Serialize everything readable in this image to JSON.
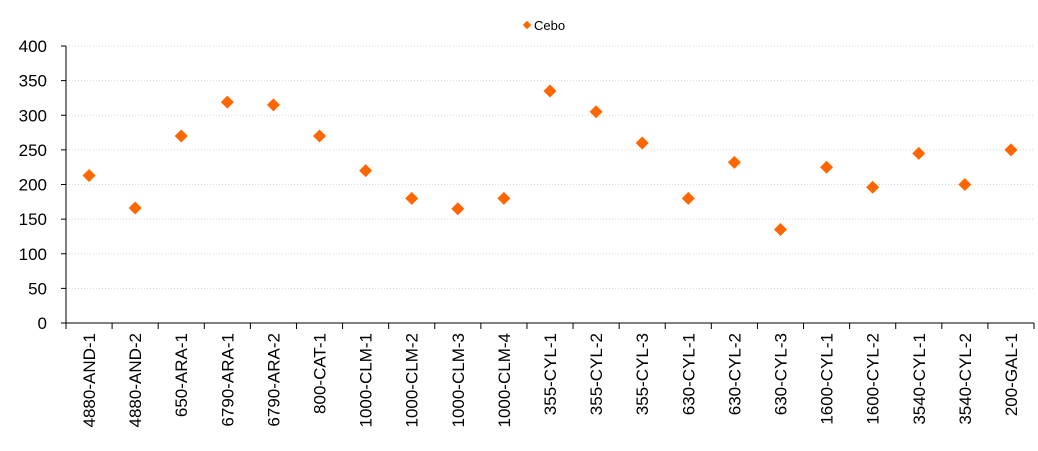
{
  "chart_data": {
    "type": "scatter",
    "categories": [
      "4880-AND-1",
      "4880-AND-2",
      "650-ARA-1",
      "6790-ARA-1",
      "6790-ARA-2",
      "800-CAT-1",
      "1000-CLM-1",
      "1000-CLM-2",
      "1000-CLM-3",
      "1000-CLM-4",
      "355-CYL-1",
      "355-CYL-2",
      "355-CYL-3",
      "630-CYL-1",
      "630-CYL-2",
      "630-CYL-3",
      "1600-CYL-1",
      "1600-CYL-2",
      "3540-CYL-1",
      "3540-CYL-2",
      "200-GAL-1"
    ],
    "series": [
      {
        "name": "Cebo",
        "color": "#ff6600",
        "marker": "diamond",
        "values": [
          213,
          166,
          270,
          319,
          315,
          270,
          220,
          180,
          165,
          180,
          335,
          305,
          260,
          180,
          232,
          135,
          225,
          196,
          245,
          200,
          250
        ]
      }
    ],
    "title": "",
    "xlabel": "",
    "ylabel": "",
    "ylim": [
      0,
      400
    ],
    "yticks": [
      "0",
      "50",
      "100",
      "150",
      "200",
      "250",
      "300",
      "350",
      "400"
    ],
    "grid": true,
    "legend": "top-center"
  }
}
